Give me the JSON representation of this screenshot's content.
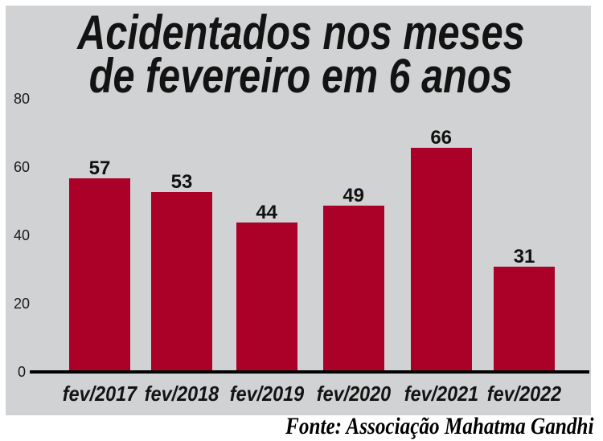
{
  "chart_data": {
    "type": "bar",
    "title_lines": [
      "Acidentados nos meses",
      "de fevereiro em 6 anos"
    ],
    "categories": [
      "fev/2017",
      "fev/2018",
      "fev/2019",
      "fev/2020",
      "fev/2021",
      "fev/2022"
    ],
    "values": [
      57,
      53,
      44,
      49,
      66,
      31
    ],
    "y_ticks": [
      0,
      20,
      40,
      60,
      80
    ],
    "ylim": [
      0,
      80
    ],
    "xlabel": "",
    "ylabel": "",
    "grid": false,
    "legend": false,
    "bar_color": "#ab0129",
    "panel_background": "#d1d2d3"
  },
  "footer": {
    "source_text": "Fonte: Associação Mahatma Gandhi"
  }
}
